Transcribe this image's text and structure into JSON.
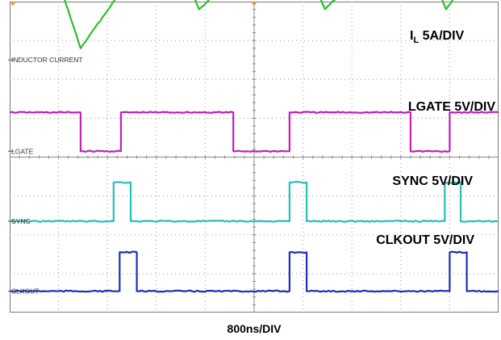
{
  "chart_data": {
    "type": "line",
    "title": "",
    "xlabel": "800ns/DIV",
    "ylabel": "",
    "grid": true,
    "x_divisions": 10,
    "y_divisions": 8,
    "series": [
      {
        "name": "INDUCTOR CURRENT",
        "channel_label": "INDUCTOR CURRENT",
        "scale_label_main": "I",
        "scale_label_sub": "L",
        "scale_label_rest": " 5A/DIV",
        "color": "#2dbe2d",
        "ref_level_div": 1.5,
        "x": [
          0.0,
          1.6,
          2.9,
          6.4,
          7.75,
          11.45,
          12.9,
          16.4,
          17.85,
          20.0
        ],
        "y": [
          1.55,
          2.8,
          0.3,
          3.4,
          1.3,
          3.5,
          1.3,
          3.5,
          1.3,
          3.25
        ]
      },
      {
        "name": "LGATE",
        "channel_label": "LGATE",
        "scale_label": "LGATE 5V/DIV",
        "color": "#c21fb8",
        "ref_level_div": 3.85,
        "x": [
          0.0,
          2.9,
          2.9,
          4.55,
          4.55,
          9.15,
          9.15,
          11.45,
          11.45,
          16.4,
          16.4,
          18.0,
          18.0,
          20.0
        ],
        "y": [
          1.0,
          1.0,
          0.0,
          0.0,
          1.0,
          1.0,
          0.0,
          0.0,
          1.0,
          1.0,
          0.0,
          0.0,
          1.0,
          1.0
        ]
      },
      {
        "name": "SYNC",
        "channel_label": "SYNC",
        "scale_label": "SYNC 5V/DIV",
        "color": "#2bbcbc",
        "ref_level_div": 5.65,
        "x": [
          0.0,
          4.25,
          4.25,
          4.95,
          4.95,
          11.45,
          11.45,
          12.15,
          12.15,
          17.8,
          17.8,
          18.45,
          18.45,
          20.0
        ],
        "y": [
          0.0,
          0.0,
          1.0,
          1.0,
          0.0,
          0.0,
          1.0,
          1.0,
          0.0,
          0.0,
          1.0,
          1.0,
          0.0,
          0.0
        ]
      },
      {
        "name": "CLKOUT",
        "channel_label": "CLKOUT",
        "scale_label": "CLKOUT 5V/DIV",
        "color": "#1e2db3",
        "ref_level_div": 7.45,
        "x": [
          0.0,
          4.5,
          4.5,
          5.2,
          5.2,
          11.45,
          11.45,
          12.15,
          12.15,
          18.0,
          18.0,
          18.7,
          18.7,
          20.0
        ],
        "y": [
          0.0,
          0.0,
          1.0,
          1.0,
          0.0,
          0.0,
          1.0,
          1.0,
          0.0,
          0.0,
          1.0,
          1.0,
          0.0,
          0.0
        ]
      }
    ]
  }
}
